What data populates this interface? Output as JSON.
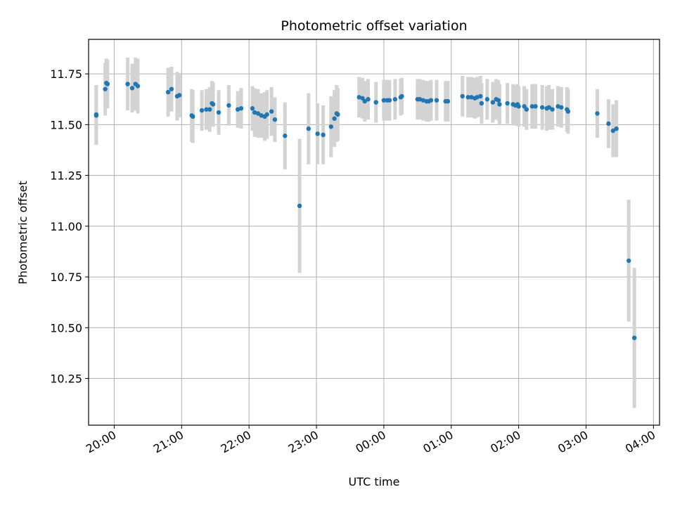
{
  "chart_data": {
    "type": "scatter",
    "title": "Photometric offset variation",
    "xlabel": "UTC time",
    "ylabel": "Photometric offset",
    "x_ticks": [
      "20:00",
      "21:00",
      "22:00",
      "23:00",
      "00:00",
      "01:00",
      "02:00",
      "03:00",
      "04:00"
    ],
    "x_ticks_hours": [
      20,
      21,
      22,
      23,
      24,
      25,
      26,
      27,
      28
    ],
    "xlim_hours": [
      19.62,
      28.09
    ],
    "y_ticks": [
      "10.25",
      "10.50",
      "10.75",
      "11.00",
      "11.25",
      "11.50",
      "11.75"
    ],
    "ylim": [
      10.02,
      11.92
    ],
    "grid": true,
    "colors": {
      "point": "#1f77b4",
      "errorbar": "#d3d3d3",
      "grid": "#b0b0b0"
    },
    "series": [
      {
        "points": [
          [
            "19:44",
            11.55,
            0.145
          ],
          [
            "19:44",
            11.545,
            0.145
          ],
          [
            "19:52",
            11.675,
            0.13
          ],
          [
            "19:53",
            11.705,
            0.12
          ],
          [
            "19:54",
            11.7,
            0.12
          ],
          [
            "20:12",
            11.7,
            0.13
          ],
          [
            "20:16",
            11.68,
            0.12
          ],
          [
            "20:19",
            11.7,
            0.13
          ],
          [
            "20:21",
            11.69,
            0.135
          ],
          [
            "20:48",
            11.66,
            0.12
          ],
          [
            "20:51",
            11.675,
            0.11
          ],
          [
            "20:56",
            11.64,
            0.12
          ],
          [
            "20:58",
            11.645,
            0.11
          ],
          [
            "21:09",
            11.545,
            0.13
          ],
          [
            "21:10",
            11.54,
            0.13
          ],
          [
            "21:18",
            11.57,
            0.1
          ],
          [
            "21:22",
            11.575,
            0.1
          ],
          [
            "21:25",
            11.575,
            0.11
          ],
          [
            "21:27",
            11.605,
            0.11
          ],
          [
            "21:28",
            11.6,
            0.11
          ],
          [
            "21:33",
            11.56,
            0.11
          ],
          [
            "21:42",
            11.595,
            0.1
          ],
          [
            "21:50",
            11.575,
            0.09
          ],
          [
            "21:53",
            11.58,
            0.1
          ],
          [
            "22:03",
            11.58,
            0.11
          ],
          [
            "22:05",
            11.56,
            0.12
          ],
          [
            "22:08",
            11.555,
            0.12
          ],
          [
            "22:11",
            11.545,
            0.11
          ],
          [
            "22:14",
            11.54,
            0.12
          ],
          [
            "22:16",
            11.55,
            0.12
          ],
          [
            "22:20",
            11.565,
            0.12
          ],
          [
            "22:23",
            11.525,
            0.11
          ],
          [
            "22:32",
            11.445,
            0.165
          ],
          [
            "22:45",
            11.1,
            0.33
          ],
          [
            "22:53",
            11.48,
            0.175
          ],
          [
            "23:01",
            11.455,
            0.15
          ],
          [
            "23:06",
            11.45,
            0.145
          ],
          [
            "23:13",
            11.49,
            0.15
          ],
          [
            "23:16",
            11.53,
            0.14
          ],
          [
            "23:18",
            11.555,
            0.14
          ],
          [
            "23:19",
            11.55,
            0.13
          ],
          [
            "23:38",
            11.635,
            0.1
          ],
          [
            "23:41",
            11.63,
            0.1
          ],
          [
            "23:43",
            11.615,
            0.1
          ],
          [
            "23:46",
            11.625,
            0.1
          ],
          [
            "23:53",
            11.61,
            0.1
          ],
          [
            "00:00",
            11.62,
            0.1
          ],
          [
            "00:03",
            11.62,
            0.1
          ],
          [
            "00:05",
            11.62,
            0.1
          ],
          [
            "00:10",
            11.625,
            0.1
          ],
          [
            "00:15",
            11.635,
            0.09
          ],
          [
            "00:16",
            11.64,
            0.09
          ],
          [
            "00:30",
            11.625,
            0.1
          ],
          [
            "00:32",
            11.625,
            0.1
          ],
          [
            "00:35",
            11.62,
            0.1
          ],
          [
            "00:38",
            11.615,
            0.1
          ],
          [
            "00:40",
            11.615,
            0.1
          ],
          [
            "00:42",
            11.62,
            0.1
          ],
          [
            "00:47",
            11.62,
            0.1
          ],
          [
            "00:55",
            11.615,
            0.1
          ],
          [
            "00:57",
            11.615,
            0.1
          ],
          [
            "01:10",
            11.64,
            0.1
          ],
          [
            "01:15",
            11.635,
            0.1
          ],
          [
            "01:18",
            11.635,
            0.1
          ],
          [
            "01:21",
            11.63,
            0.1
          ],
          [
            "01:23",
            11.635,
            0.1
          ],
          [
            "01:26",
            11.64,
            0.1
          ],
          [
            "01:27",
            11.605,
            0.1
          ],
          [
            "01:32",
            11.625,
            0.1
          ],
          [
            "01:37",
            11.61,
            0.1
          ],
          [
            "01:40",
            11.625,
            0.1
          ],
          [
            "01:42",
            11.62,
            0.1
          ],
          [
            "01:43",
            11.6,
            0.1
          ],
          [
            "01:50",
            11.605,
            0.1
          ],
          [
            "01:55",
            11.6,
            0.1
          ],
          [
            "01:57",
            11.595,
            0.1
          ],
          [
            "01:59",
            11.6,
            0.1
          ],
          [
            "02:00",
            11.59,
            0.1
          ],
          [
            "02:05",
            11.59,
            0.1
          ],
          [
            "02:07",
            11.575,
            0.1
          ],
          [
            "02:12",
            11.59,
            0.11
          ],
          [
            "02:15",
            11.59,
            0.11
          ],
          [
            "02:21",
            11.585,
            0.11
          ],
          [
            "02:25",
            11.58,
            0.11
          ],
          [
            "02:27",
            11.585,
            0.11
          ],
          [
            "02:30",
            11.575,
            0.1
          ],
          [
            "02:35",
            11.59,
            0.1
          ],
          [
            "02:38",
            11.585,
            0.1
          ],
          [
            "02:43",
            11.575,
            0.11
          ],
          [
            "02:44",
            11.565,
            0.11
          ],
          [
            "03:10",
            11.555,
            0.12
          ],
          [
            "03:20",
            11.505,
            0.12
          ],
          [
            "03:24",
            11.47,
            0.13
          ],
          [
            "03:27",
            11.48,
            0.14
          ],
          [
            "03:38",
            10.83,
            0.3
          ],
          [
            "03:43",
            10.45,
            0.345
          ]
        ]
      }
    ]
  }
}
